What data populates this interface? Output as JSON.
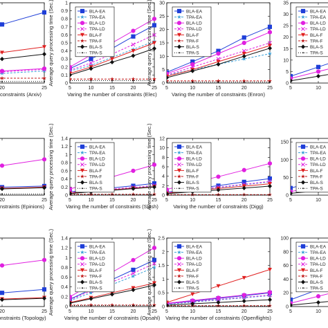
{
  "chart_data": [
    {
      "type": "line",
      "xlabel": "constraints (Arxiv)",
      "ylabel": "",
      "x": [
        5,
        10,
        15,
        20,
        25
      ],
      "x_ticks_shown": [
        20,
        25
      ],
      "xlim": [
        5,
        25
      ],
      "ylim": [
        0,
        1
      ],
      "y_ticks": [],
      "legend": false,
      "series": [
        {
          "name": "BLA-EA",
          "values": [
            0.25,
            0.45,
            0.6,
            0.73,
            0.88
          ]
        },
        {
          "name": "TPA-EA",
          "values": [
            0.05,
            0.07,
            0.1,
            0.12,
            0.15
          ]
        },
        {
          "name": "BLA-LD",
          "values": [
            0.08,
            0.1,
            0.13,
            0.15,
            0.18
          ]
        },
        {
          "name": "TPA-LD",
          "values": [
            0.07,
            0.09,
            0.12,
            0.14,
            0.17
          ]
        },
        {
          "name": "BLA-F",
          "values": [
            0.12,
            0.22,
            0.3,
            0.38,
            0.45
          ]
        },
        {
          "name": "TPA-F",
          "values": [
            0.06,
            0.06,
            0.06,
            0.06,
            0.06
          ]
        },
        {
          "name": "BLA-S",
          "values": [
            0.1,
            0.18,
            0.24,
            0.3,
            0.36
          ]
        },
        {
          "name": "TPA-S",
          "values": [
            0.02,
            0.02,
            0.02,
            0.02,
            0.02
          ]
        }
      ]
    },
    {
      "type": "line",
      "xlabel": "Varing the number of constraints (Elec)",
      "ylabel": "Average query processing time (Sec.)",
      "x": [
        5,
        10,
        15,
        20,
        25
      ],
      "x_ticks_shown": [
        5,
        10,
        15,
        20,
        25
      ],
      "xlim": [
        5,
        25
      ],
      "ylim": [
        0,
        1
      ],
      "y_ticks": [
        0,
        0.1,
        0.2,
        0.3,
        0.4,
        0.5,
        0.6,
        0.7,
        0.8,
        0.9,
        1
      ],
      "legend": true,
      "series": [
        {
          "name": "BLA-EA",
          "values": [
            0.18,
            0.3,
            0.43,
            0.58,
            0.72
          ]
        },
        {
          "name": "TPA-EA",
          "values": [
            0.15,
            0.22,
            0.32,
            0.42,
            0.52
          ]
        },
        {
          "name": "BLA-LD",
          "values": [
            0.2,
            0.35,
            0.5,
            0.65,
            0.8
          ]
        },
        {
          "name": "TPA-LD",
          "values": [
            0.16,
            0.25,
            0.36,
            0.48,
            0.6
          ]
        },
        {
          "name": "BLA-F",
          "values": [
            0.12,
            0.2,
            0.3,
            0.4,
            0.5
          ]
        },
        {
          "name": "TPA-F",
          "values": [
            0.05,
            0.05,
            0.05,
            0.05,
            0.05
          ]
        },
        {
          "name": "BLA-S",
          "values": [
            0.1,
            0.18,
            0.26,
            0.34,
            0.43
          ]
        },
        {
          "name": "TPA-S",
          "values": [
            0.03,
            0.03,
            0.03,
            0.03,
            0.03
          ]
        }
      ]
    },
    {
      "type": "line",
      "xlabel": "Varing the number of constraints (Enron)",
      "ylabel": "Average query processing time (Sec.)",
      "x": [
        5,
        10,
        15,
        20,
        25
      ],
      "x_ticks_shown": [
        5,
        10,
        15,
        20,
        25
      ],
      "xlim": [
        5,
        25
      ],
      "ylim": [
        0,
        30
      ],
      "y_ticks": [
        0,
        5,
        10,
        15,
        20,
        25,
        30
      ],
      "legend": true,
      "series": [
        {
          "name": "BLA-EA",
          "values": [
            4,
            8,
            12,
            17,
            21
          ]
        },
        {
          "name": "TPA-EA",
          "values": [
            3,
            5,
            7,
            9,
            11
          ]
        },
        {
          "name": "BLA-LD",
          "values": [
            3.5,
            7,
            11,
            15,
            19
          ]
        },
        {
          "name": "TPA-LD",
          "values": [
            3,
            6,
            9,
            12,
            15
          ]
        },
        {
          "name": "BLA-F",
          "values": [
            2.5,
            5,
            8,
            11,
            14
          ]
        },
        {
          "name": "TPA-F",
          "values": [
            0.8,
            0.8,
            0.8,
            0.8,
            0.8
          ]
        },
        {
          "name": "BLA-S",
          "values": [
            2,
            4.5,
            7,
            10,
            13
          ]
        },
        {
          "name": "TPA-S",
          "values": [
            0.4,
            0.4,
            0.4,
            0.4,
            0.4
          ]
        }
      ]
    },
    {
      "type": "line",
      "xlabel": "",
      "ylabel": "",
      "x": [
        5,
        10,
        15,
        20,
        25
      ],
      "x_ticks_shown": [
        5,
        10
      ],
      "xlim": [
        5,
        25
      ],
      "ylim": [
        0,
        35
      ],
      "y_ticks": [
        0,
        5,
        10,
        15,
        20,
        25,
        30,
        35
      ],
      "legend": true,
      "series": [
        {
          "name": "BLA-EA",
          "values": [
            3,
            7,
            11,
            15,
            19
          ]
        },
        {
          "name": "BLA-LD",
          "values": [
            2,
            5,
            8,
            11,
            14
          ]
        },
        {
          "name": "BLA-S",
          "values": [
            1,
            3,
            5,
            7,
            9
          ]
        }
      ]
    },
    {
      "type": "line",
      "xlabel": "onstraints (Epinions)",
      "ylabel": "",
      "x": [
        5,
        10,
        15,
        20,
        25
      ],
      "x_ticks_shown": [
        20,
        25
      ],
      "xlim": [
        5,
        25
      ],
      "ylim": [
        0,
        1
      ],
      "y_ticks": [],
      "legend": false,
      "series": [
        {
          "name": "BLA-EA",
          "values": [
            0.08,
            0.1,
            0.12,
            0.14,
            0.16
          ]
        },
        {
          "name": "BLA-LD",
          "values": [
            0.2,
            0.32,
            0.42,
            0.52,
            0.63
          ]
        },
        {
          "name": "BLA-F",
          "values": [
            0.06,
            0.08,
            0.1,
            0.12,
            0.14
          ]
        },
        {
          "name": "BLA-S",
          "values": [
            0.05,
            0.07,
            0.09,
            0.11,
            0.13
          ]
        },
        {
          "name": "TPA-S",
          "values": [
            0.02,
            0.02,
            0.02,
            0.02,
            0.02
          ]
        }
      ]
    },
    {
      "type": "line",
      "xlabel": "Varing the number of constraints (Slash)",
      "ylabel": "Average query processing time (Sec.)",
      "x": [
        5,
        10,
        15,
        20,
        25
      ],
      "x_ticks_shown": [
        5,
        10,
        15,
        20,
        25
      ],
      "xlim": [
        5,
        25
      ],
      "ylim": [
        0,
        1.4
      ],
      "y_ticks": [
        0,
        0.2,
        0.4,
        0.6,
        0.8,
        1,
        1.2,
        1.4
      ],
      "legend": true,
      "series": [
        {
          "name": "BLA-EA",
          "values": [
            0.08,
            0.13,
            0.18,
            0.23,
            0.29
          ]
        },
        {
          "name": "TPA-EA",
          "values": [
            0.06,
            0.1,
            0.14,
            0.18,
            0.22
          ]
        },
        {
          "name": "BLA-LD",
          "values": [
            0.15,
            0.3,
            0.45,
            0.6,
            0.75
          ]
        },
        {
          "name": "TPA-LD",
          "values": [
            0.07,
            0.11,
            0.15,
            0.19,
            0.24
          ]
        },
        {
          "name": "BLA-F",
          "values": [
            0.05,
            0.09,
            0.13,
            0.17,
            0.21
          ]
        },
        {
          "name": "TPA-F",
          "values": [
            0.02,
            0.02,
            0.02,
            0.02,
            0.02
          ]
        },
        {
          "name": "BLA-S",
          "values": [
            0.04,
            0.08,
            0.12,
            0.16,
            0.2
          ]
        },
        {
          "name": "TPA-S",
          "values": [
            0.01,
            0.01,
            0.01,
            0.01,
            0.01
          ]
        }
      ]
    },
    {
      "type": "line",
      "xlabel": "Varing the number of constraints (Digg)",
      "ylabel": "Average query processing time (Sec.)",
      "x": [
        5,
        10,
        15,
        20,
        25
      ],
      "x_ticks_shown": [
        5,
        10,
        15,
        20,
        25
      ],
      "xlim": [
        5,
        25
      ],
      "ylim": [
        0,
        12
      ],
      "y_ticks": [
        0,
        2,
        4,
        6,
        8,
        10,
        12
      ],
      "legend": true,
      "series": [
        {
          "name": "BLA-EA",
          "values": [
            0.6,
            1.3,
            2.0,
            2.8,
            3.5
          ]
        },
        {
          "name": "TPA-EA",
          "values": [
            0.5,
            1.0,
            1.6,
            2.2,
            2.8
          ]
        },
        {
          "name": "BLA-LD",
          "values": [
            1.2,
            2.6,
            3.9,
            5.3,
            6.7
          ]
        },
        {
          "name": "TPA-LD",
          "values": [
            0.5,
            1.1,
            1.7,
            2.3,
            2.9
          ]
        },
        {
          "name": "BLA-F",
          "values": [
            0.4,
            0.9,
            1.4,
            1.9,
            2.4
          ]
        },
        {
          "name": "TPA-F",
          "values": [
            0.1,
            0.1,
            0.1,
            0.1,
            0.1
          ]
        },
        {
          "name": "BLA-S",
          "values": [
            0.3,
            0.7,
            1.1,
            1.5,
            1.9
          ]
        },
        {
          "name": "TPA-S",
          "values": [
            0.05,
            0.05,
            0.05,
            0.05,
            0.05
          ]
        }
      ]
    },
    {
      "type": "line",
      "xlabel": "",
      "ylabel": "",
      "x": [
        5,
        10,
        15,
        20,
        25
      ],
      "x_ticks_shown": [
        5,
        10
      ],
      "xlim": [
        5,
        25
      ],
      "ylim": [
        0,
        160
      ],
      "y_ticks": [
        0,
        50,
        100,
        150
      ],
      "legend": true,
      "series": [
        {
          "name": "BLA-EA",
          "values": [
            20,
            40,
            60,
            80,
            100
          ]
        },
        {
          "name": "BLA-LD",
          "values": [
            10,
            25,
            40,
            55,
            70
          ]
        },
        {
          "name": "BLA-S",
          "values": [
            5,
            12,
            19,
            26,
            33
          ]
        }
      ]
    },
    {
      "type": "line",
      "xlabel": "constraints (Topology)",
      "ylabel": "",
      "x": [
        5,
        10,
        15,
        20,
        25
      ],
      "x_ticks_shown": [
        20,
        25
      ],
      "xlim": [
        5,
        25
      ],
      "ylim": [
        0,
        1
      ],
      "y_ticks": [],
      "legend": false,
      "series": [
        {
          "name": "BLA-EA",
          "values": [
            0.08,
            0.12,
            0.16,
            0.2,
            0.25
          ]
        },
        {
          "name": "BLA-LD",
          "values": [
            0.3,
            0.42,
            0.52,
            0.6,
            0.68
          ]
        },
        {
          "name": "BLA-F",
          "values": [
            0.05,
            0.07,
            0.09,
            0.11,
            0.13
          ]
        },
        {
          "name": "BLA-S",
          "values": [
            0.04,
            0.06,
            0.08,
            0.1,
            0.12
          ]
        }
      ]
    },
    {
      "type": "line",
      "xlabel": "Varing the number of constraints (Opsahl)",
      "ylabel": "Average query processing time (Sec.)",
      "x": [
        5,
        10,
        15,
        20,
        25
      ],
      "x_ticks_shown": [
        5,
        10,
        15,
        20,
        25
      ],
      "xlim": [
        5,
        25
      ],
      "ylim": [
        0,
        1.4
      ],
      "y_ticks": [
        0,
        0.2,
        0.4,
        0.6,
        0.8,
        1,
        1.2,
        1.4
      ],
      "legend": true,
      "series": [
        {
          "name": "BLA-EA",
          "values": [
            0.15,
            0.35,
            0.55,
            0.75,
            0.95
          ]
        },
        {
          "name": "TPA-EA",
          "values": [
            0.12,
            0.28,
            0.45,
            0.62,
            0.8
          ]
        },
        {
          "name": "BLA-LD",
          "values": [
            0.2,
            0.45,
            0.7,
            0.95,
            1.2
          ]
        },
        {
          "name": "TPA-LD",
          "values": [
            0.14,
            0.32,
            0.5,
            0.68,
            0.88
          ]
        },
        {
          "name": "BLA-F",
          "values": [
            0.08,
            0.18,
            0.28,
            0.38,
            0.48
          ]
        },
        {
          "name": "TPA-F",
          "values": [
            0.03,
            0.03,
            0.03,
            0.03,
            0.03
          ]
        },
        {
          "name": "BLA-S",
          "values": [
            0.07,
            0.16,
            0.25,
            0.34,
            0.44
          ]
        },
        {
          "name": "TPA-S",
          "values": [
            0.02,
            0.02,
            0.02,
            0.02,
            0.02
          ]
        }
      ]
    },
    {
      "type": "line",
      "xlabel": "Varing the number of constraints (Openflights)",
      "ylabel": "Average query processing time (Sec.)",
      "x": [
        5,
        10,
        15,
        20,
        25
      ],
      "x_ticks_shown": [
        5,
        10,
        15,
        20,
        25
      ],
      "xlim": [
        5,
        25
      ],
      "ylim": [
        0,
        2.5
      ],
      "y_ticks": [
        0,
        0.5,
        1,
        1.5,
        2,
        2.5
      ],
      "legend": true,
      "series": [
        {
          "name": "BLA-EA",
          "values": [
            0.1,
            0.2,
            0.3,
            0.4,
            0.5
          ]
        },
        {
          "name": "TPA-EA",
          "values": [
            0.08,
            0.16,
            0.24,
            0.32,
            0.4
          ]
        },
        {
          "name": "BLA-LD",
          "values": [
            0.12,
            0.22,
            0.32,
            0.42,
            0.52
          ]
        },
        {
          "name": "TPA-LD",
          "values": [
            0.1,
            0.18,
            0.26,
            0.34,
            0.42
          ]
        },
        {
          "name": "BLA-F",
          "values": [
            0.15,
            0.45,
            0.75,
            1.05,
            1.35
          ]
        },
        {
          "name": "TPA-F",
          "values": [
            0.03,
            0.03,
            0.03,
            0.03,
            0.03
          ]
        },
        {
          "name": "BLA-S",
          "values": [
            0.05,
            0.1,
            0.15,
            0.2,
            0.25
          ]
        },
        {
          "name": "TPA-S",
          "values": [
            0.02,
            0.02,
            0.02,
            0.02,
            0.02
          ]
        }
      ]
    },
    {
      "type": "line",
      "xlabel": "",
      "ylabel": "",
      "x": [
        5,
        10,
        15,
        20,
        25
      ],
      "x_ticks_shown": [
        5,
        10
      ],
      "xlim": [
        5,
        25
      ],
      "ylim": [
        0,
        100
      ],
      "y_ticks": [
        0,
        20,
        40,
        60,
        80,
        100
      ],
      "legend": true,
      "series": [
        {
          "name": "BLA-EA",
          "values": [
            10,
            25,
            40,
            55,
            70
          ]
        },
        {
          "name": "BLA-LD",
          "values": [
            5,
            15,
            25,
            35,
            45
          ]
        },
        {
          "name": "BLA-S",
          "values": [
            2,
            6,
            10,
            14,
            18
          ]
        }
      ]
    }
  ],
  "legend_entries": [
    "BLA-EA",
    "TPA-EA",
    "BLA-LD",
    "TPA-LD",
    "BLA-F",
    "TPA-F",
    "BLA-S",
    "TPA-S"
  ],
  "series_style": {
    "BLA-EA": {
      "color": "#1f3fd8",
      "marker": "square",
      "dash": ""
    },
    "TPA-EA": {
      "color": "#3aa0d8",
      "marker": "star",
      "dash": "3,2"
    },
    "BLA-LD": {
      "color": "#e020e0",
      "marker": "circle",
      "dash": ""
    },
    "TPA-LD": {
      "color": "#e020e0",
      "marker": "x",
      "dash": "3,2"
    },
    "BLA-F": {
      "color": "#e02020",
      "marker": "triangle-down",
      "dash": ""
    },
    "TPA-F": {
      "color": "#c01818",
      "marker": "star",
      "dash": "3,2"
    },
    "BLA-S": {
      "color": "#111111",
      "marker": "diamond",
      "dash": ""
    },
    "TPA-S": {
      "color": "#111111",
      "marker": "dot",
      "dash": "1,2"
    }
  }
}
